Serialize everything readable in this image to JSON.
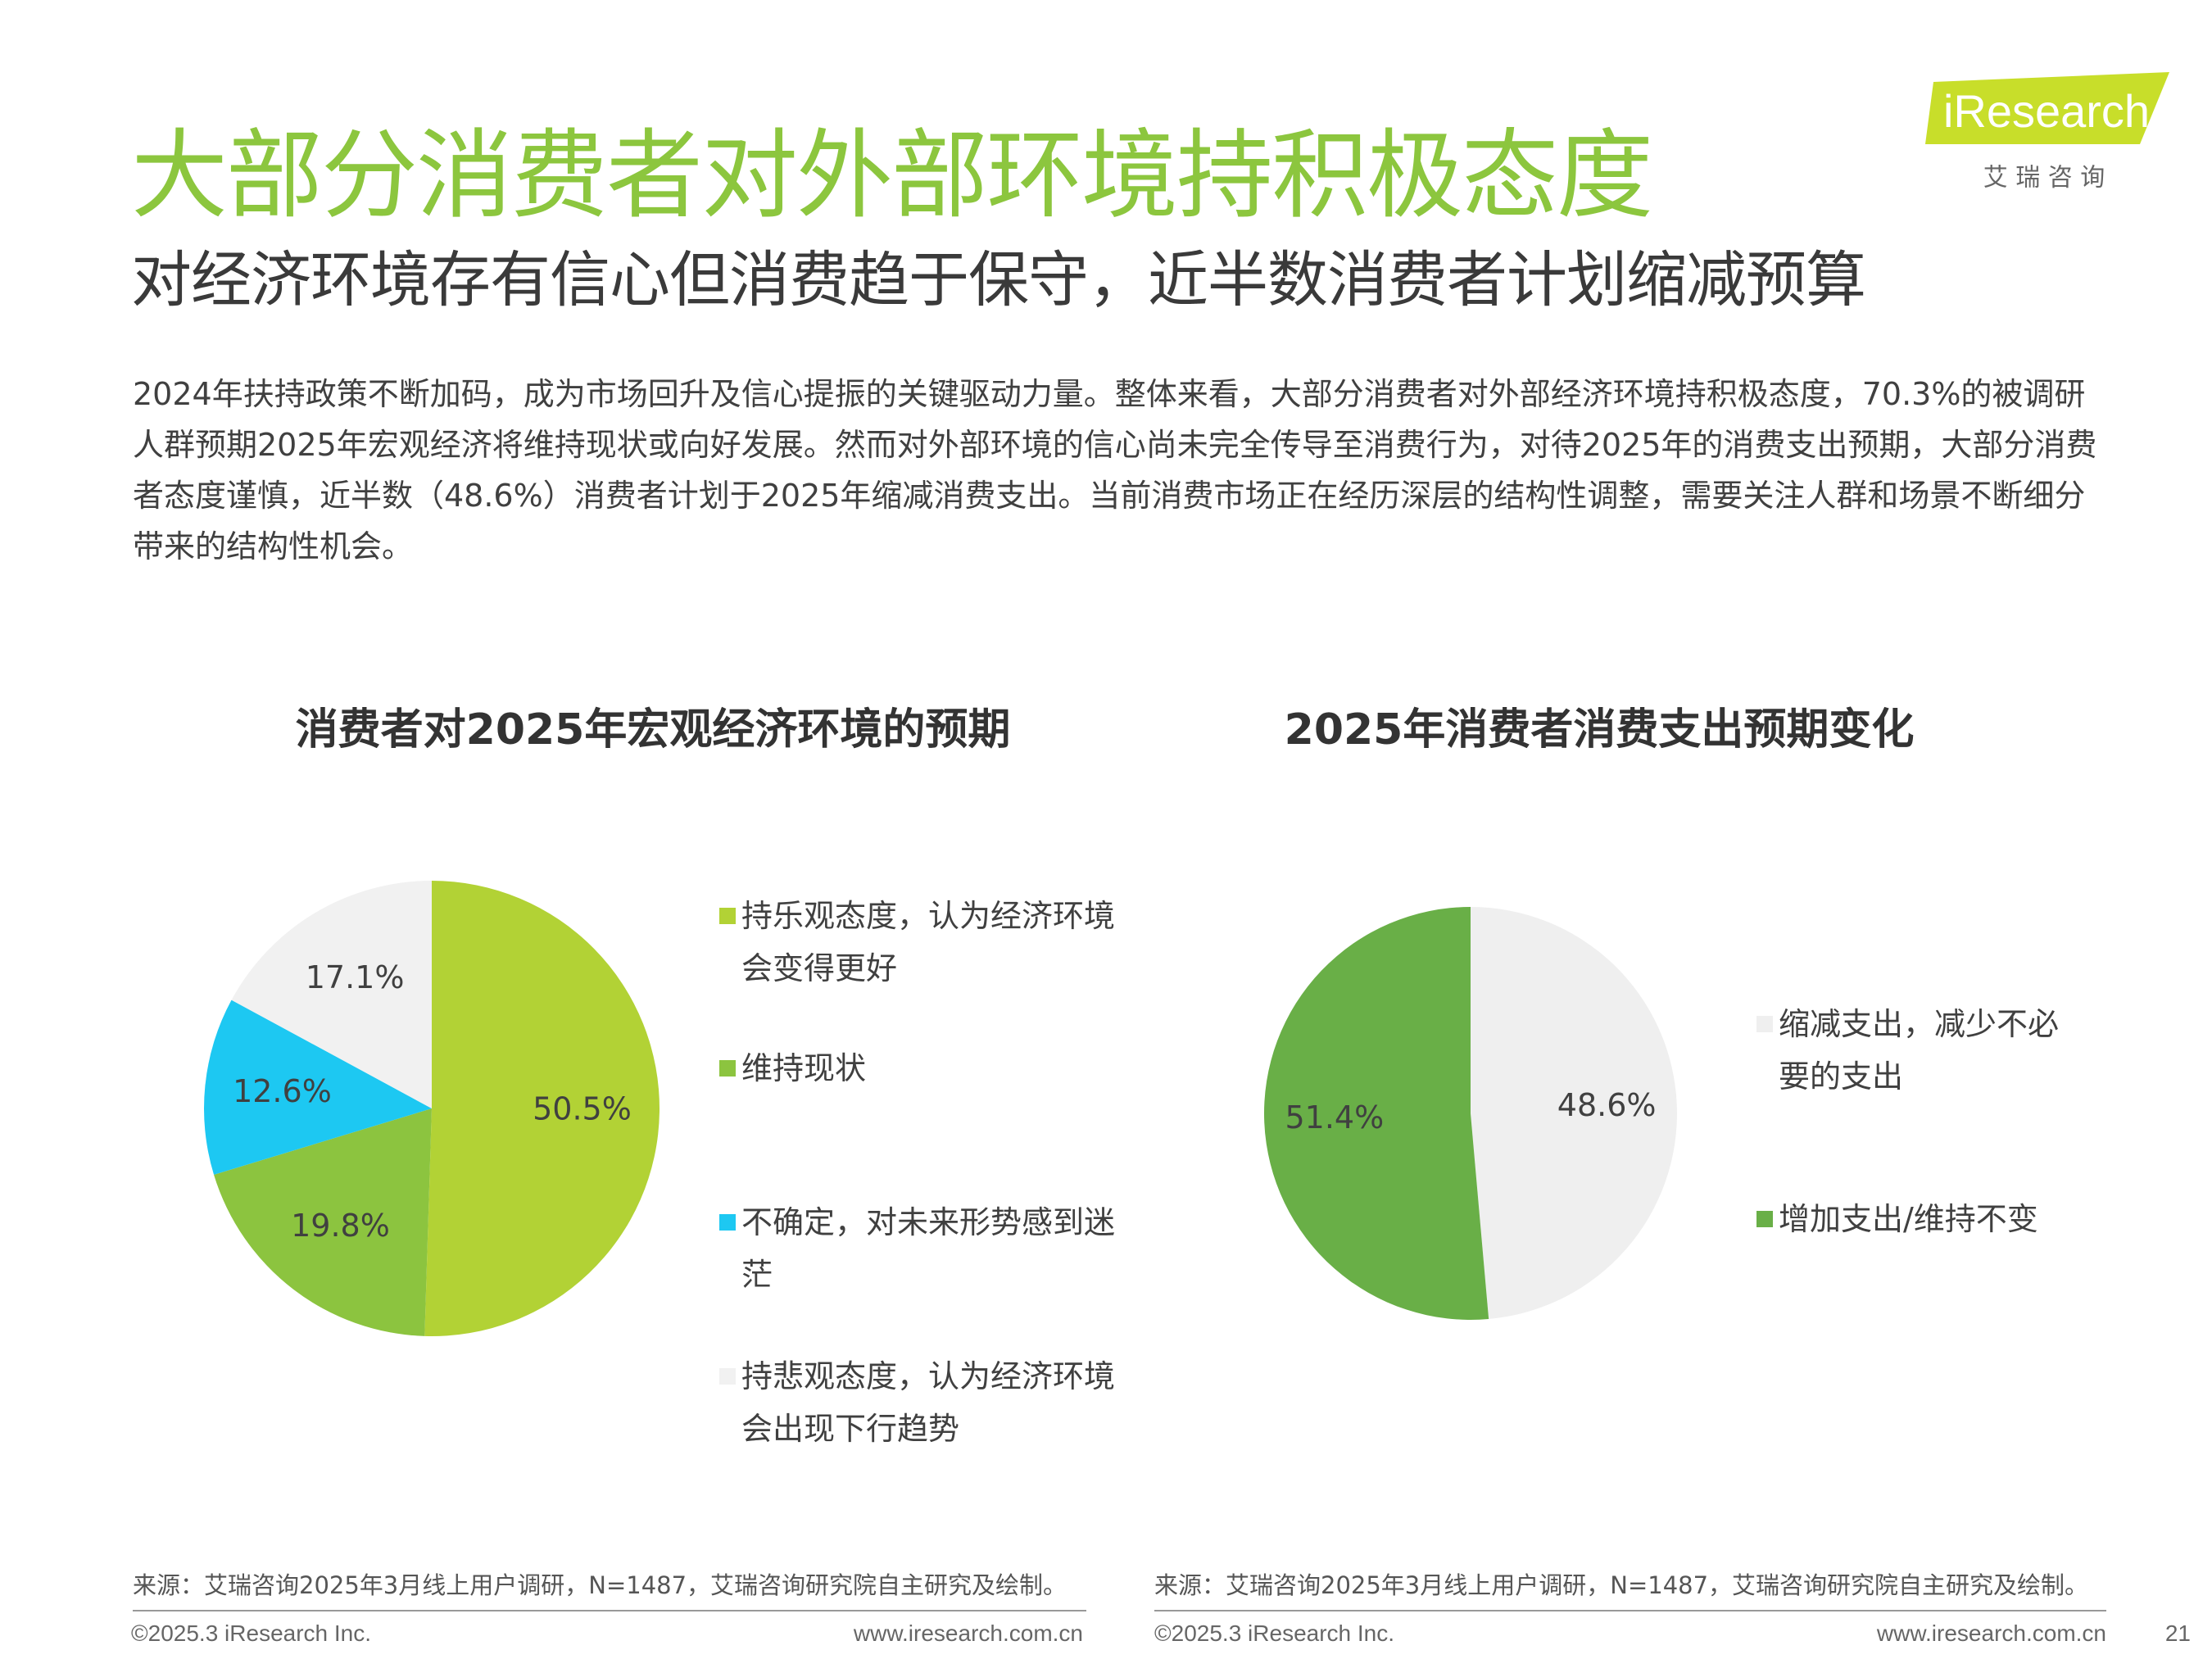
{
  "header": {
    "title": "大部分消费者对外部环境持积极态度",
    "subtitle": "对经济环境存有信心但消费趋于保守，近半数消费者计划缩减预算"
  },
  "logo": {
    "name": "iResearch",
    "tagline": "艾 瑞 咨 询"
  },
  "body": {
    "paragraph": "2024年扶持政策不断加码，成为市场回升及信心提振的关键驱动力量。整体来看，大部分消费者对外部经济环境持积极态度，70.3%的被调研人群预期2025年宏观经济将维持现状或向好发展。然而对外部环境的信心尚未完全传导至消费行为，对待2025年的消费支出预期，大部分消费者态度谨慎，近半数（48.6%）消费者计划于2025年缩减消费支出。当前消费市场正在经历深层的结构性调整，需要关注人群和场景不断细分带来的结构性机会。"
  },
  "chart_data": [
    {
      "type": "pie",
      "title": "消费者对2025年宏观经济环境的预期",
      "categories": [
        "持乐观态度，认为经济环境会变得更好",
        "维持现状",
        "不确定，对未来形势感到迷茫",
        "持悲观态度，认为经济环境会出现下行趋势"
      ],
      "values": [
        50.5,
        19.8,
        12.6,
        17.1
      ],
      "value_labels": [
        "50.5%",
        "19.8%",
        "12.6%",
        "17.1%"
      ],
      "colors": [
        "#b2d235",
        "#8cc43f",
        "#1dc8f2",
        "#f1f1f1"
      ]
    },
    {
      "type": "pie",
      "title": "2025年消费者消费支出预期变化",
      "categories": [
        "缩减支出，减少不必要的支出",
        "增加支出/维持不变"
      ],
      "values": [
        48.6,
        51.4
      ],
      "value_labels": [
        "48.6%",
        "51.4%"
      ],
      "colors": [
        "#efefef",
        "#69af47"
      ]
    }
  ],
  "footer": {
    "sources": [
      "来源：艾瑞咨询2025年3月线上用户调研，N=1487，艾瑞咨询研究院自主研究及绘制。",
      "来源：艾瑞咨询2025年3月线上用户调研，N=1487，艾瑞咨询研究院自主研究及绘制。"
    ],
    "copyrights": [
      "©2025.3 iResearch Inc.",
      "©2025.3 iResearch Inc."
    ],
    "urls": [
      "www.iresearch.com.cn",
      "www.iresearch.com.cn"
    ],
    "page": "21"
  }
}
